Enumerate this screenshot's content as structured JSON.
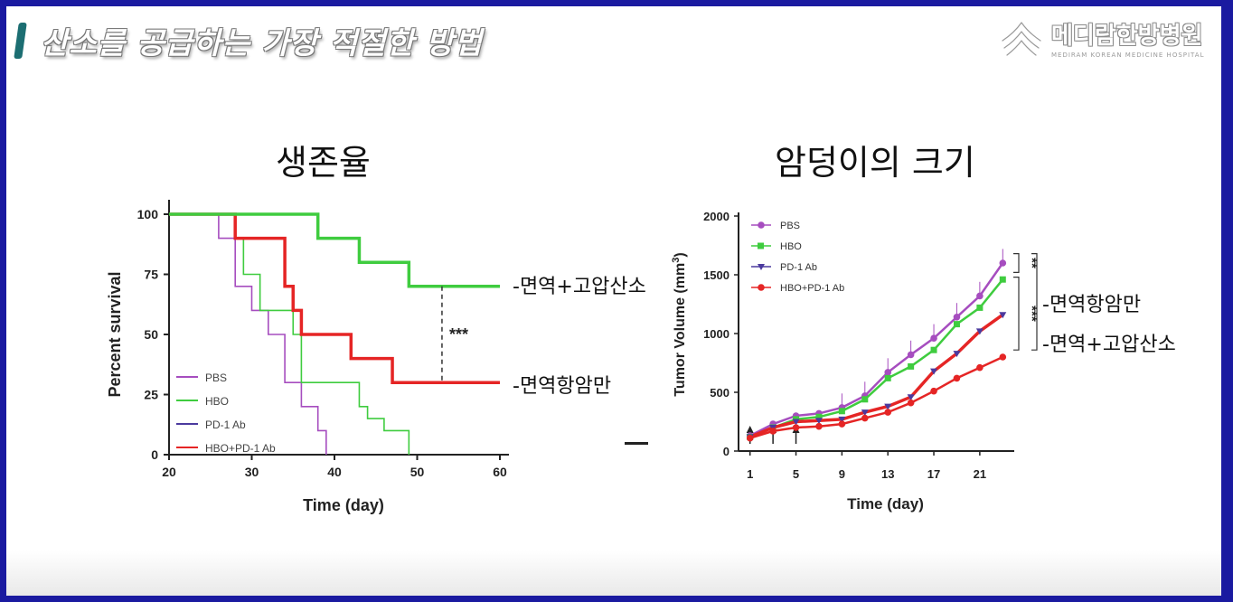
{
  "slide": {
    "header_title": "산소를 공급하는 가장 적절한 방법",
    "logo_text": "메디람한방병원",
    "logo_subtext": "MEDIRAM KOREAN MEDICINE HOSPITAL"
  },
  "titles": {
    "left": "생존율",
    "right": "암덩이의 크기"
  },
  "annotations": {
    "left_upper": "-면역+고압산소",
    "left_lower": "-면역항암만",
    "right_upper": "-면역항암만",
    "right_lower": "-면역+고압산소"
  },
  "colors": {
    "PBS": "#a64dbf",
    "HBO": "#3fcc3f",
    "PD-1 Ab": "#4b3a9e",
    "HBO+PD-1 Ab": "#e52525"
  },
  "chart_data": [
    {
      "type": "line",
      "chart_style": "step (Kaplan-Meier)",
      "title": "",
      "xlabel": "Time (day)",
      "ylabel": "Percent survival",
      "xlim": [
        20,
        60
      ],
      "ylim": [
        0,
        100
      ],
      "xticks": [
        "20",
        "30",
        "40",
        "50",
        "60"
      ],
      "yticks": [
        "0",
        "25",
        "50",
        "75",
        "100"
      ],
      "legend_position": "bottom-left",
      "series": [
        {
          "name": "PBS",
          "x": [
            20,
            26,
            28,
            30,
            32,
            34,
            36,
            38,
            39
          ],
          "y": [
            100,
            90,
            70,
            60,
            50,
            30,
            20,
            10,
            0
          ]
        },
        {
          "name": "HBO",
          "x": [
            20,
            28,
            29,
            31,
            35,
            36,
            43,
            44,
            46,
            49
          ],
          "y": [
            100,
            90,
            75,
            60,
            50,
            30,
            20,
            15,
            10,
            0
          ]
        },
        {
          "name": "PD-1 Ab",
          "x": [
            20,
            28,
            34,
            35,
            36,
            42,
            47,
            60
          ],
          "y": [
            100,
            90,
            70,
            60,
            50,
            40,
            30,
            30
          ]
        },
        {
          "name": "HBO+PD-1 Ab",
          "x": [
            20,
            28,
            34,
            35,
            36,
            42,
            47,
            60
          ],
          "y": [
            100,
            90,
            70,
            60,
            50,
            40,
            30,
            30
          ],
          "emphasized": true
        },
        {
          "name": "HBO (upper)",
          "x": [
            20,
            38,
            43,
            49,
            60
          ],
          "y": [
            100,
            90,
            80,
            70,
            70
          ],
          "emphasized": true
        }
      ],
      "significance": {
        "label": "***",
        "between": [
          "HBO+PD-1 Ab (upper)",
          "PD-1 Ab"
        ],
        "at_x": 53
      }
    },
    {
      "type": "line",
      "title": "",
      "xlabel": "Time (day)",
      "ylabel": "Tumor Volume (mm³)",
      "ylabel_main": "Tumor Volume (mm",
      "ylabel_sup": "3",
      "ylabel_tail": ")",
      "ylim": [
        0,
        2000
      ],
      "xticks": [
        "1",
        "5",
        "9",
        "13",
        "17",
        "21"
      ],
      "yticks": [
        "0",
        "500",
        "1000",
        "1500",
        "2000"
      ],
      "legend_position": "top-left",
      "treatment_arrows_days": [
        1,
        3,
        5
      ],
      "x": [
        1,
        3,
        5,
        7,
        9,
        11,
        13,
        15,
        17,
        19,
        21,
        23
      ],
      "series": [
        {
          "name": "PBS",
          "values": [
            130,
            230,
            300,
            320,
            370,
            470,
            670,
            820,
            960,
            1140,
            1320,
            1600
          ],
          "marker": "circle"
        },
        {
          "name": "HBO",
          "values": [
            120,
            200,
            270,
            290,
            340,
            440,
            620,
            720,
            860,
            1080,
            1220,
            1460
          ],
          "marker": "square"
        },
        {
          "name": "PD-1 Ab",
          "values": [
            120,
            200,
            250,
            260,
            270,
            330,
            380,
            460,
            680,
            830,
            1020,
            1160
          ],
          "marker": "triangle-down"
        },
        {
          "name": "HBO+PD-1 Ab",
          "values": [
            110,
            170,
            200,
            210,
            230,
            280,
            330,
            410,
            510,
            620,
            710,
            800
          ],
          "marker": "circle"
        }
      ],
      "significance": [
        {
          "label": "**",
          "between": [
            "PBS",
            "HBO"
          ]
        },
        {
          "label": "***",
          "between": [
            "HBO",
            "PD-1 Ab"
          ]
        },
        {
          "label": "***",
          "between": [
            "PBS",
            "HBO+PD-1 Ab"
          ]
        }
      ]
    }
  ]
}
